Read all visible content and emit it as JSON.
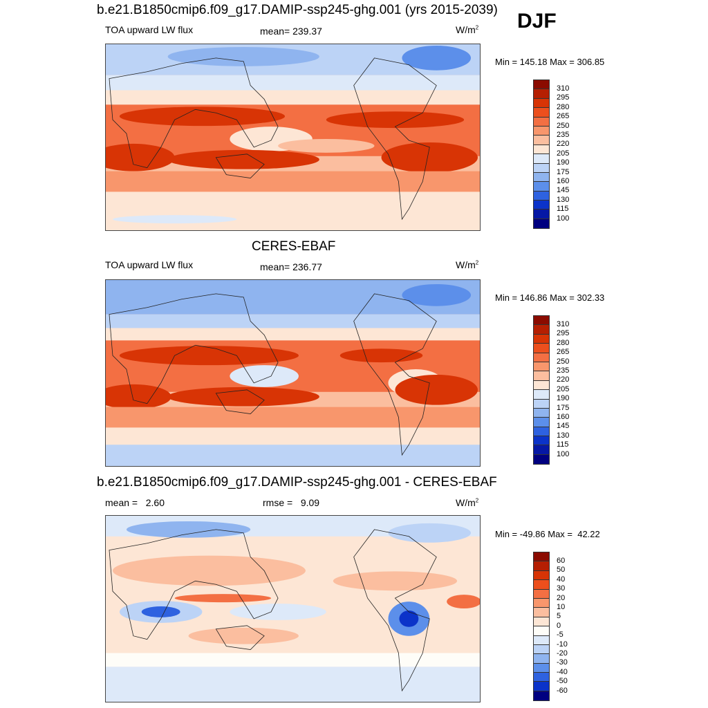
{
  "season": "DJF",
  "units_prefix": "W/m",
  "units_exp": "2",
  "panels": [
    {
      "title": "b.e21.B1850cmip6.f09_g17.DAMIP-ssp245-ghg.001 (yrs 2015-2039)",
      "left_label": "TOA upward LW flux",
      "center_label": "mean= 239.37",
      "minmax": "Min = 145.18 Max = 306.85"
    },
    {
      "title": "CERES-EBAF",
      "left_label": "TOA upward LW flux",
      "center_label": "mean= 236.77",
      "minmax": "Min = 146.86 Max = 302.33"
    },
    {
      "title": "b.e21.B1850cmip6.f09_g17.DAMIP-ssp245-ghg.001 - CERES-EBAF",
      "left_label": "mean =   2.60",
      "center_label": "rmse =   9.09",
      "minmax": "Min = -49.86 Max =  42.22"
    }
  ],
  "colorbar_abs": {
    "labels": [
      "310",
      "295",
      "280",
      "265",
      "250",
      "235",
      "220",
      "205",
      "190",
      "175",
      "160",
      "145",
      "130",
      "115",
      "100"
    ],
    "colors": [
      "#8b0b00",
      "#b51f02",
      "#d83405",
      "#ec4f1d",
      "#f36f43",
      "#f8966c",
      "#fbbe9f",
      "#fde6d5",
      "#dde9f9",
      "#bcd3f6",
      "#8fb4ef",
      "#5c8fea",
      "#2e62e0",
      "#0b33c9",
      "#0618a5",
      "#000080"
    ]
  },
  "colorbar_diff": {
    "labels": [
      "60",
      "50",
      "40",
      "30",
      "20",
      "10",
      "5",
      "0",
      "-5",
      "-10",
      "-20",
      "-30",
      "-40",
      "-50",
      "-60"
    ],
    "colors": [
      "#8b0b00",
      "#b51f02",
      "#d83405",
      "#ec4f1d",
      "#f36f43",
      "#f8966c",
      "#fbbe9f",
      "#fde6d5",
      "#fefdf8",
      "#dde9f9",
      "#bcd3f6",
      "#8fb4ef",
      "#5c8fea",
      "#2e62e0",
      "#0b33c9",
      "#000080"
    ]
  }
}
